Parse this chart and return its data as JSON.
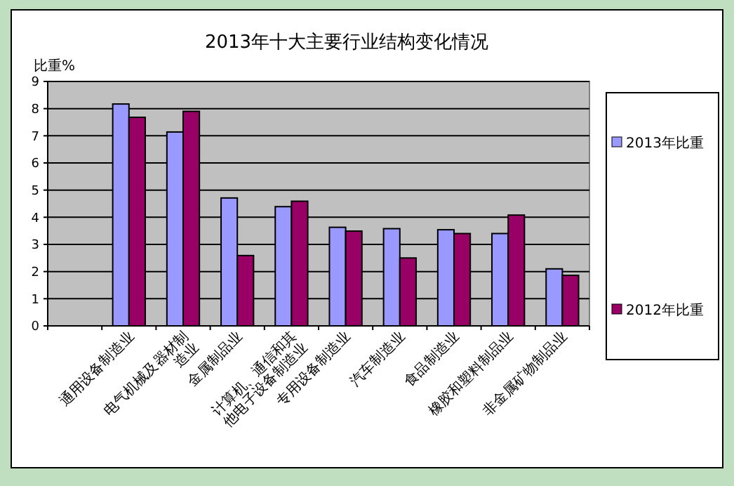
{
  "chart_data": {
    "type": "bar",
    "title": "2013年十大主要行业结构变化情况",
    "ylabel": "比重%",
    "categories": [
      null,
      "通用设备制造业",
      "电气机械及器材制造业",
      "金属制品业",
      "计算机、通信和其他电子设备制造业",
      "专用设备制造业",
      "汽车制造业",
      "食品制造业",
      "橡胶和塑料制品业",
      "非金属矿物制品业"
    ],
    "series": [
      {
        "name": "2013年比重",
        "color": "#9999ff",
        "values": [
          null,
          8.17,
          7.14,
          4.71,
          4.39,
          3.63,
          3.58,
          3.54,
          3.4,
          2.1
        ]
      },
      {
        "name": "2012年比重",
        "color": "#990066",
        "values": [
          null,
          7.68,
          7.9,
          2.59,
          4.59,
          3.49,
          2.5,
          3.4,
          4.08,
          1.86
        ]
      }
    ],
    "ylim": [
      0,
      9
    ],
    "yticks": [
      0,
      1,
      2,
      3,
      4,
      5,
      6,
      7,
      8,
      9
    ],
    "grid": "y",
    "legend": "right"
  }
}
